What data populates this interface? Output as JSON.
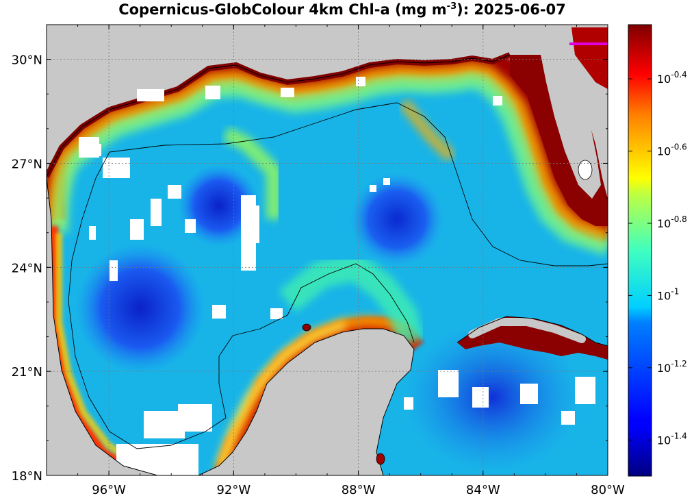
{
  "title": "Copernicus-GlobColour 4km Chl-a (mg m",
  "title_sup": "-3",
  "title_tail": "): 2025-06-07",
  "map": {
    "lon_range": [
      -98,
      -80
    ],
    "lat_range": [
      18,
      31
    ],
    "land_color": "#c8c8c8",
    "ocean_palette": "jet",
    "lon_ticks": [
      {
        "v": -96,
        "label": "96°W"
      },
      {
        "v": -92,
        "label": "92°W"
      },
      {
        "v": -88,
        "label": "88°W"
      },
      {
        "v": -84,
        "label": "84°W"
      },
      {
        "v": -80,
        "label": "80°W"
      }
    ],
    "lat_ticks": [
      {
        "v": 30,
        "label": "30°N"
      },
      {
        "v": 27,
        "label": "27°N"
      },
      {
        "v": 24,
        "label": "24°N"
      },
      {
        "v": 21,
        "label": "21°N"
      },
      {
        "v": 18,
        "label": "18°N"
      }
    ]
  },
  "colorbar": {
    "range_log10": [
      -1.5,
      -0.25
    ],
    "ticks": [
      {
        "v": -0.4,
        "base": "10",
        "exp": "-0.4"
      },
      {
        "v": -0.6,
        "base": "10",
        "exp": "-0.6"
      },
      {
        "v": -0.8,
        "base": "10",
        "exp": "-0.8"
      },
      {
        "v": -1.0,
        "base": "10",
        "exp": "-1"
      },
      {
        "v": -1.2,
        "base": "10",
        "exp": "-1.2"
      },
      {
        "v": -1.4,
        "base": "10",
        "exp": "-1.4"
      }
    ]
  }
}
